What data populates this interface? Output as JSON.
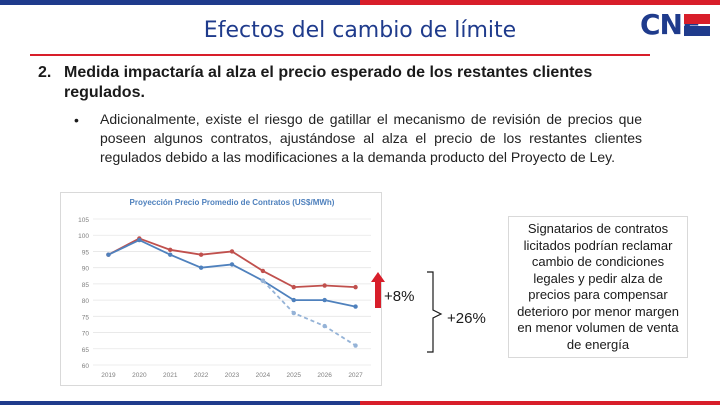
{
  "slide": {
    "title": "Efectos del cambio de límite",
    "logo_text": "CNE",
    "heading_number": "2.",
    "heading_text": "Medida impactaría al alza el precio esperado de los restantes clientes regulados.",
    "bullet_symbol": "•",
    "bullet_text": "Adicionalmente, existe el riesgo de gatillar el mecanismo de revisión de precios que poseen algunos contratos, ajustándose al alza el precio de los restantes clientes regulados debido a las modificaciones a la demanda producto del Proyecto de Ley.",
    "annotation_small": "+8%",
    "annotation_large": "+26%",
    "side_note": "Signatarios de contratos licitados podrían reclamar cambio de condiciones legales y pedir alza de precios para compensar deterioro por menor margen en menor volumen de venta de energía"
  },
  "colors": {
    "brand_blue": "#1f3b8c",
    "brand_red": "#d81e2a",
    "series_red": "#c0504d",
    "series_blue": "#4f81bd",
    "series_lightblue": "#95b3d7"
  },
  "chart_data": {
    "type": "line",
    "title": "Proyección Precio Promedio de Contratos (US$/MWh)",
    "categories": [
      "2019",
      "2020",
      "2021",
      "2022",
      "2023",
      "2024",
      "2025",
      "2026",
      "2027"
    ],
    "ylim": [
      60,
      105
    ],
    "yticks": [
      "60",
      "65",
      "70",
      "75",
      "80",
      "85",
      "90",
      "95",
      "100",
      "105"
    ],
    "grid": true,
    "series": [
      {
        "color": "#c0504d",
        "dash": false,
        "values": [
          94,
          99,
          95.5,
          94,
          95,
          89,
          84,
          84.5,
          84
        ]
      },
      {
        "color": "#4f81bd",
        "dash": false,
        "values": [
          94,
          98.5,
          94,
          90,
          91,
          86,
          80,
          80,
          78
        ]
      },
      {
        "color": "#95b3d7",
        "dash": true,
        "values": [
          null,
          null,
          null,
          null,
          null,
          86,
          76,
          72,
          66
        ]
      }
    ]
  }
}
